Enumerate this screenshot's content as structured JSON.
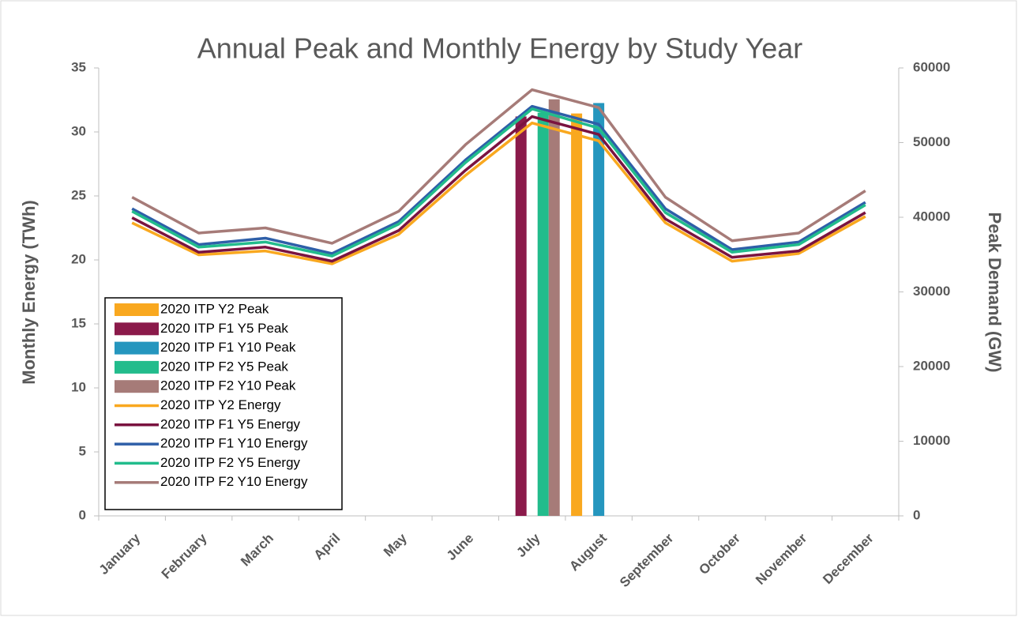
{
  "chart_data": {
    "type": "bar",
    "title": "Annual Peak and Monthly Energy by Study Year",
    "y_label": "Monthly Energy (TWh)",
    "y2_label": "Peak Demand (GW)",
    "categories": [
      "January",
      "February",
      "March",
      "April",
      "May",
      "June",
      "July",
      "August",
      "September",
      "October",
      "November",
      "December"
    ],
    "ylim": [
      0,
      35
    ],
    "yticks": [
      0,
      5,
      10,
      15,
      20,
      25,
      30,
      35
    ],
    "y2lim": [
      0,
      60000
    ],
    "y2ticks": [
      0,
      10000,
      20000,
      30000,
      40000,
      50000,
      60000
    ],
    "legend": "lower-left",
    "series": [
      {
        "name": "2020 ITP Y2 Peak",
        "type": "bar",
        "axis": "y2",
        "color": "#f9a81f",
        "values": [
          null,
          null,
          null,
          null,
          null,
          null,
          null,
          53900,
          null,
          null,
          null,
          null
        ]
      },
      {
        "name": "2020 ITP F1 Y5 Peak",
        "type": "bar",
        "axis": "y2",
        "color": "#8b1a4a",
        "values": [
          null,
          null,
          null,
          null,
          null,
          null,
          53500,
          null,
          null,
          null,
          null,
          null
        ]
      },
      {
        "name": "2020 ITP F1 Y10 Peak",
        "type": "bar",
        "axis": "y2",
        "color": "#2596be",
        "values": [
          null,
          null,
          null,
          null,
          null,
          null,
          null,
          55300,
          null,
          null,
          null,
          null
        ]
      },
      {
        "name": "2020 ITP F2 Y5 Peak",
        "type": "bar",
        "axis": "y2",
        "color": "#22bc8c",
        "values": [
          null,
          null,
          null,
          null,
          null,
          null,
          54000,
          null,
          null,
          null,
          null,
          null
        ]
      },
      {
        "name": "2020 ITP F2 Y10 Peak",
        "type": "bar",
        "axis": "y2",
        "color": "#a67b78",
        "values": [
          null,
          null,
          null,
          null,
          null,
          null,
          55800,
          null,
          null,
          null,
          null,
          null
        ]
      },
      {
        "name": "2020 ITP Y2 Energy",
        "type": "line",
        "color": "#f9a81f",
        "values": [
          22.9,
          20.4,
          20.7,
          19.7,
          22.0,
          26.6,
          30.7,
          29.3,
          22.9,
          19.9,
          20.5,
          23.4
        ]
      },
      {
        "name": "2020 ITP F1 Y5 Energy",
        "type": "line",
        "color": "#7a1340",
        "values": [
          23.3,
          20.6,
          21.0,
          19.9,
          22.3,
          27.0,
          31.2,
          29.8,
          23.2,
          20.2,
          20.7,
          23.7
        ]
      },
      {
        "name": "2020 ITP F1 Y10 Energy",
        "type": "line",
        "color": "#2e5fa8",
        "values": [
          24.0,
          21.2,
          21.7,
          20.5,
          23.0,
          27.8,
          32.0,
          30.6,
          24.0,
          20.8,
          21.4,
          24.5
        ]
      },
      {
        "name": "2020 ITP F2 Y5 Energy",
        "type": "line",
        "color": "#22bc8c",
        "values": [
          23.8,
          21.0,
          21.4,
          20.3,
          22.8,
          27.6,
          31.8,
          30.3,
          23.7,
          20.6,
          21.2,
          24.3
        ]
      },
      {
        "name": "2020 ITP F2 Y10 Energy",
        "type": "line",
        "color": "#a67b78",
        "values": [
          24.9,
          22.1,
          22.5,
          21.3,
          23.8,
          29.0,
          33.3,
          31.9,
          24.9,
          21.5,
          22.1,
          25.4
        ]
      }
    ]
  }
}
